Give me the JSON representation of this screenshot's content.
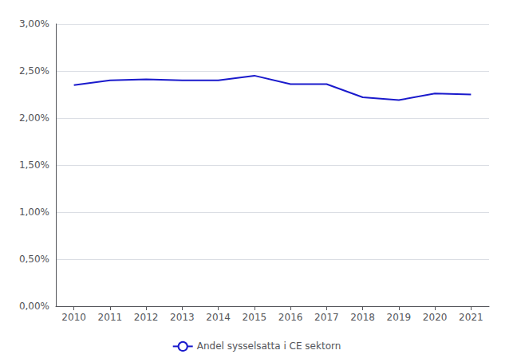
{
  "chart_data": {
    "type": "line",
    "x": [
      2010,
      2011,
      2012,
      2013,
      2014,
      2015,
      2016,
      2017,
      2018,
      2019,
      2020,
      2021
    ],
    "series": [
      {
        "name": "Andel sysselsatta i CE sektorn",
        "color": "#1a1acc",
        "values": [
          0.0235,
          0.024,
          0.0241,
          0.024,
          0.024,
          0.0245,
          0.0236,
          0.0236,
          0.0222,
          0.0219,
          0.0226,
          0.0225
        ]
      }
    ],
    "xlim": [
      2009.5,
      2021.5
    ],
    "xticks": [
      2010,
      2011,
      2012,
      2013,
      2014,
      2015,
      2016,
      2017,
      2018,
      2019,
      2020,
      2021
    ],
    "ylim": [
      0.0,
      0.03
    ],
    "yticks": [
      {
        "value": 0.0,
        "label": "0,00%"
      },
      {
        "value": 0.005,
        "label": "0,50%"
      },
      {
        "value": 0.01,
        "label": "1,00%"
      },
      {
        "value": 0.015,
        "label": "1,50%"
      },
      {
        "value": 0.02,
        "label": "2,00%"
      },
      {
        "value": 0.025,
        "label": "2,50%"
      },
      {
        "value": 0.03,
        "label": "3,00%"
      }
    ],
    "grid": true,
    "legend": "bottom"
  }
}
